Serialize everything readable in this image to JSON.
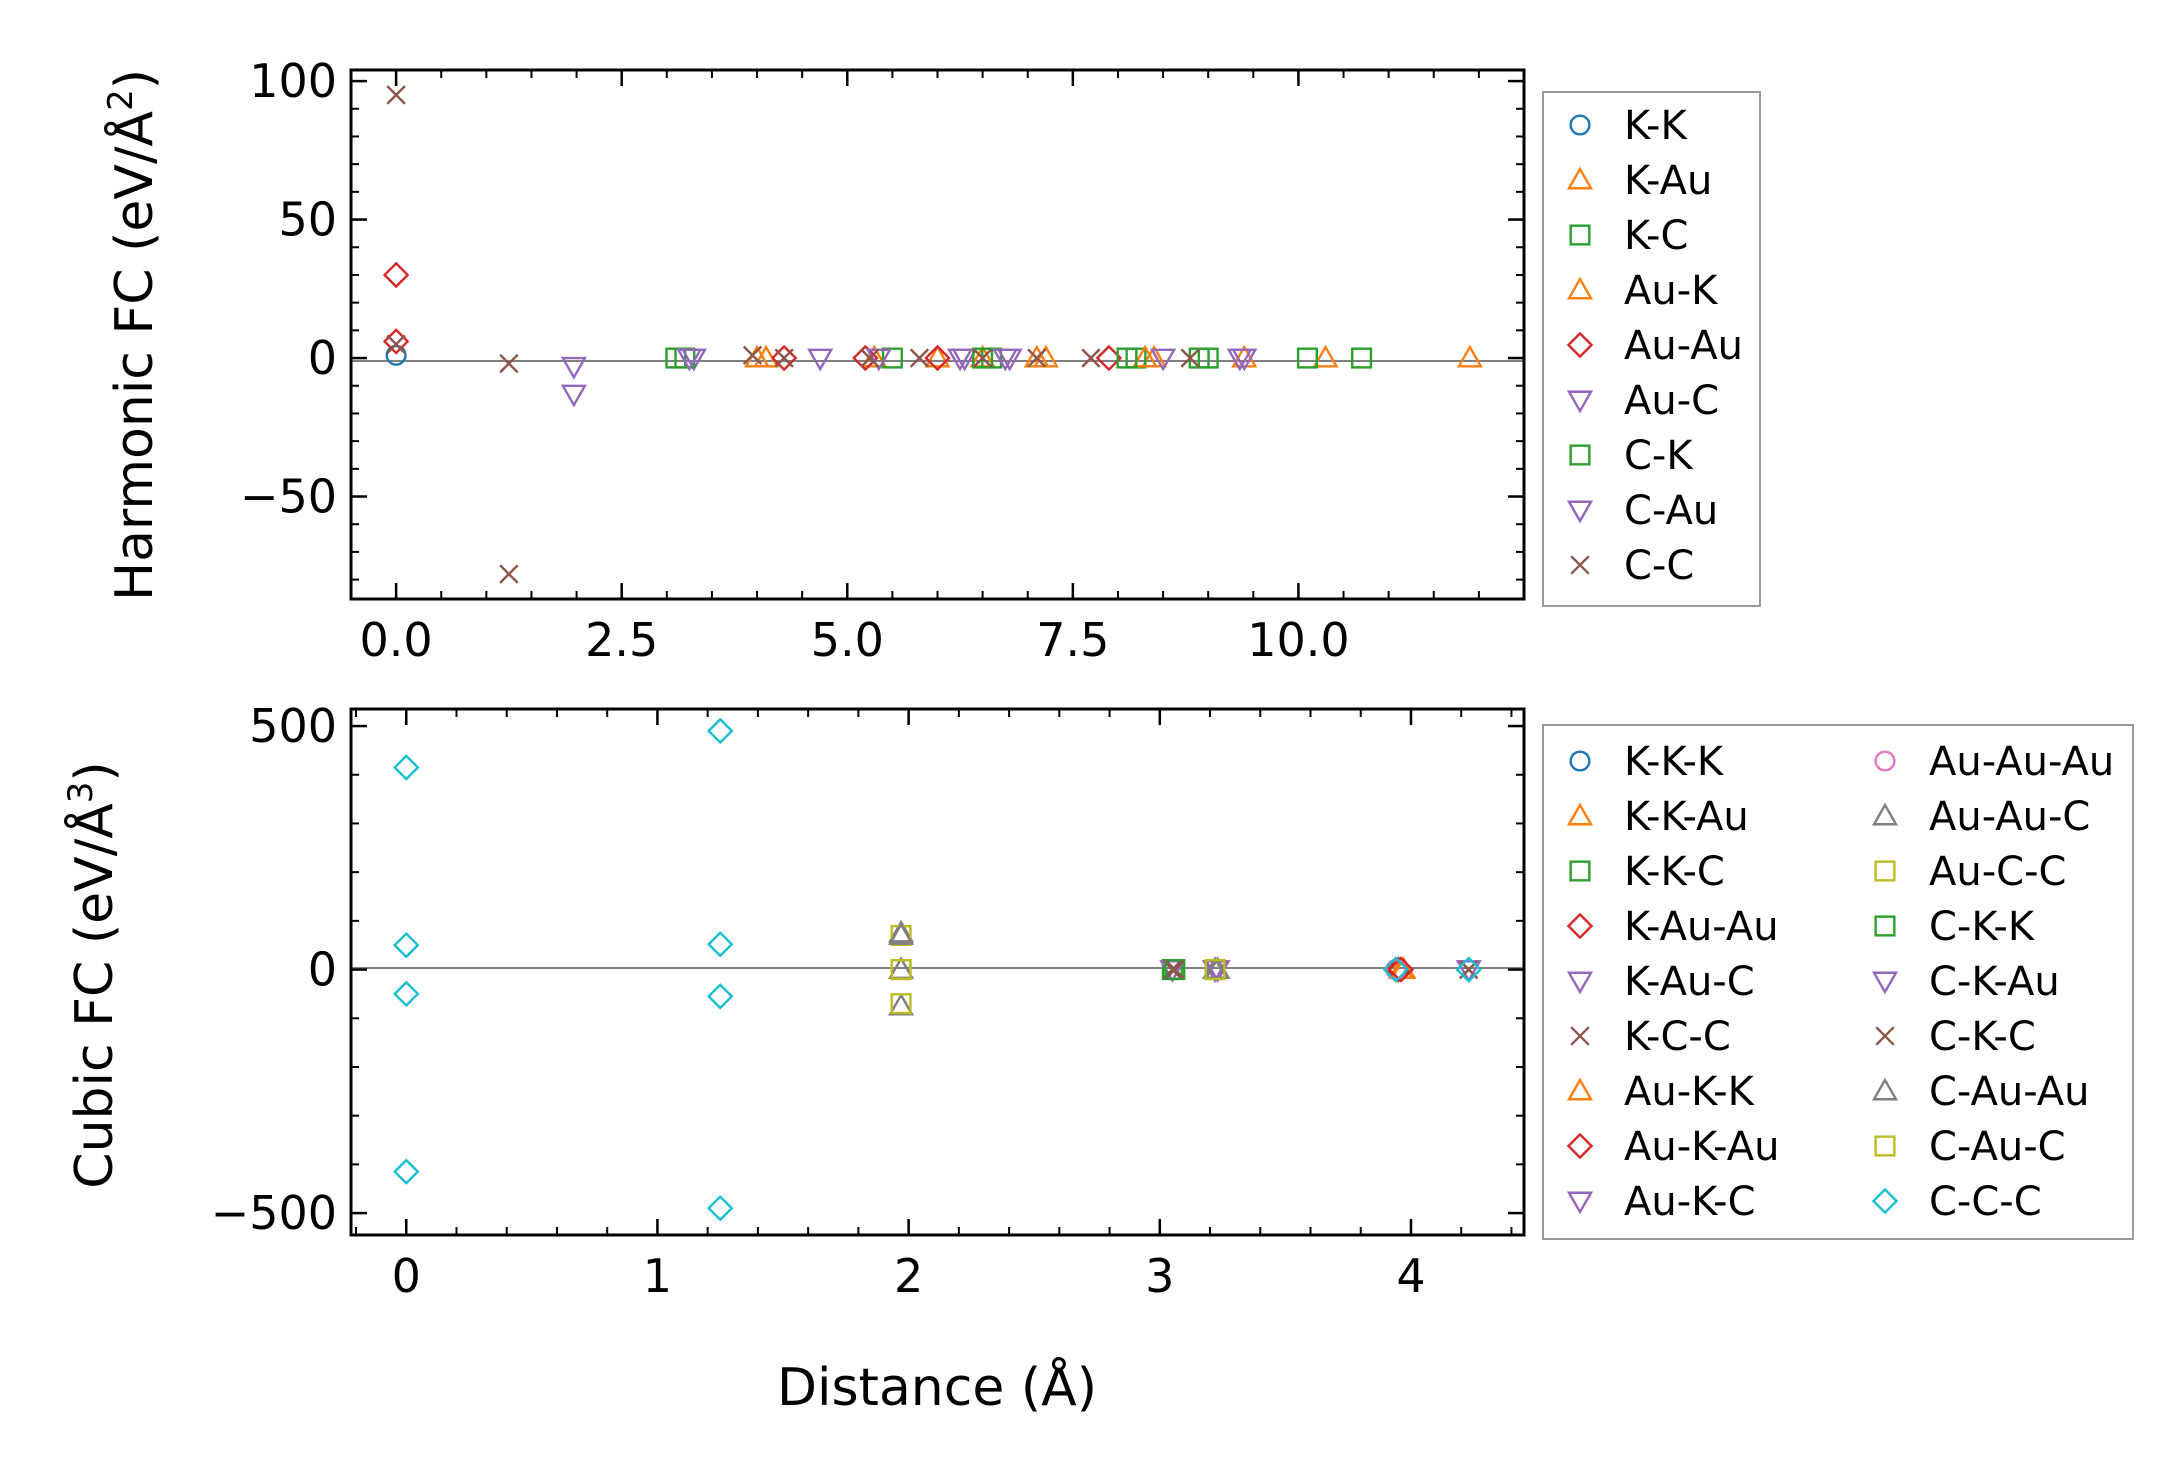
{
  "chart_data": [
    {
      "id": "harmonic",
      "type": "scatter",
      "ylabel": "Harmonic FC (eV/Å²)",
      "ylabel_main": "Harmonic FC (eV/Å",
      "ylabel_sup": "2",
      "ylabel_end": ")",
      "xlabel": "",
      "xlim": [
        -0.5,
        12.5
      ],
      "ylim": [
        -87,
        104
      ],
      "xticks": [
        0.0,
        2.5,
        5.0,
        7.5,
        10.0
      ],
      "xtick_labels": [
        "0.0",
        "2.5",
        "5.0",
        "7.5",
        "10.0"
      ],
      "yticks": [
        100,
        50,
        0,
        -50
      ],
      "ytick_labels": [
        "100",
        "50",
        "0",
        "−50"
      ],
      "legend_position": "outside-right",
      "series": [
        {
          "name": "K-K",
          "marker": "circle",
          "color": "#1f77b4",
          "points": [
            [
              0.0,
              1.0
            ]
          ]
        },
        {
          "name": "K-Au",
          "marker": "triangle-up",
          "color": "#ff7f0e",
          "points": [
            [
              4.0,
              0.0
            ],
            [
              5.3,
              0.0
            ],
            [
              6.5,
              0.0
            ],
            [
              7.2,
              0.0
            ],
            [
              8.4,
              0.0
            ],
            [
              9.4,
              0.0
            ],
            [
              10.3,
              0.0
            ],
            [
              11.9,
              0.0
            ]
          ]
        },
        {
          "name": "K-C",
          "marker": "square",
          "color": "#2ca02c",
          "points": [
            [
              3.1,
              0.0
            ],
            [
              5.5,
              0.0
            ],
            [
              6.6,
              0.0
            ],
            [
              8.2,
              0.0
            ],
            [
              9.0,
              0.0
            ],
            [
              10.1,
              0.0
            ],
            [
              10.7,
              0.0
            ]
          ]
        },
        {
          "name": "Au-K",
          "marker": "triangle-up",
          "color": "#ff7f0e",
          "points": [
            [
              4.1,
              0.0
            ],
            [
              6.0,
              0.0
            ],
            [
              7.1,
              0.0
            ],
            [
              8.3,
              0.0
            ]
          ]
        },
        {
          "name": "Au-Au",
          "marker": "diamond",
          "color": "#d62728",
          "points": [
            [
              0.0,
              30.0
            ],
            [
              0.0,
              6.0
            ],
            [
              4.3,
              0.0
            ],
            [
              5.2,
              0.0
            ],
            [
              6.0,
              0.0
            ],
            [
              7.9,
              0.0
            ]
          ]
        },
        {
          "name": "Au-C",
          "marker": "triangle-down",
          "color": "#9467bd",
          "points": [
            [
              1.97,
              -3.0
            ],
            [
              1.97,
              -13.0
            ],
            [
              3.3,
              0.0
            ],
            [
              4.7,
              0.0
            ],
            [
              5.35,
              0.0
            ],
            [
              6.3,
              0.0
            ],
            [
              6.8,
              0.0
            ],
            [
              8.5,
              0.0
            ],
            [
              9.4,
              0.0
            ]
          ]
        },
        {
          "name": "C-K",
          "marker": "square",
          "color": "#2ca02c",
          "points": [
            [
              3.2,
              0.0
            ],
            [
              6.5,
              0.0
            ],
            [
              8.1,
              0.0
            ],
            [
              8.9,
              0.0
            ]
          ]
        },
        {
          "name": "C-Au",
          "marker": "triangle-down",
          "color": "#9467bd",
          "points": [
            [
              3.25,
              0.0
            ],
            [
              6.25,
              0.0
            ],
            [
              6.75,
              0.0
            ],
            [
              9.35,
              0.0
            ]
          ]
        },
        {
          "name": "C-C",
          "marker": "x",
          "color": "#8c564b",
          "points": [
            [
              0.0,
              95.0
            ],
            [
              0.0,
              5.0
            ],
            [
              1.25,
              -2.0
            ],
            [
              1.25,
              -78.0
            ],
            [
              3.95,
              1.0
            ],
            [
              4.3,
              0.0
            ],
            [
              5.25,
              0.0
            ],
            [
              5.8,
              0.0
            ],
            [
              6.5,
              0.0
            ],
            [
              7.1,
              0.0
            ],
            [
              7.7,
              0.0
            ],
            [
              8.8,
              0.0
            ]
          ]
        }
      ]
    },
    {
      "id": "cubic",
      "type": "scatter",
      "ylabel": "Cubic FC (eV/Å³)",
      "ylabel_main": "Cubic FC (eV/Å",
      "ylabel_sup": "3",
      "ylabel_end": ")",
      "xlabel": "Distance (Å)",
      "xlim": [
        -0.22,
        4.45
      ],
      "ylim": [
        -545,
        535
      ],
      "xticks": [
        0,
        1,
        2,
        3,
        4
      ],
      "xtick_labels": [
        "0",
        "1",
        "2",
        "3",
        "4"
      ],
      "yticks": [
        500,
        0,
        -500
      ],
      "ytick_labels": [
        "500",
        "0",
        "−500"
      ],
      "legend_position": "outside-right",
      "series": [
        {
          "name": "K-K-K",
          "marker": "circle",
          "color": "#1f77b4",
          "points": [
            [
              3.94,
              0.0
            ]
          ]
        },
        {
          "name": "K-K-Au",
          "marker": "triangle-up",
          "color": "#ff7f0e",
          "points": [
            [
              3.96,
              0.0
            ]
          ]
        },
        {
          "name": "K-K-C",
          "marker": "square",
          "color": "#2ca02c",
          "points": [
            [
              3.05,
              0.0
            ]
          ]
        },
        {
          "name": "K-Au-Au",
          "marker": "diamond",
          "color": "#d62728",
          "points": [
            [
              3.95,
              0.0
            ]
          ]
        },
        {
          "name": "K-Au-C",
          "marker": "triangle-down",
          "color": "#9467bd",
          "points": [
            [
              3.05,
              0.0
            ],
            [
              3.22,
              0.0
            ]
          ]
        },
        {
          "name": "K-C-C",
          "marker": "x",
          "color": "#8c564b",
          "points": [
            [
              3.05,
              0.0
            ],
            [
              4.23,
              0.0
            ]
          ]
        },
        {
          "name": "Au-K-K",
          "marker": "triangle-up",
          "color": "#ff7f0e",
          "points": [
            [
              3.97,
              0.0
            ]
          ]
        },
        {
          "name": "Au-K-Au",
          "marker": "diamond",
          "color": "#d62728",
          "points": [
            [
              3.96,
              0.0
            ]
          ]
        },
        {
          "name": "Au-K-C",
          "marker": "triangle-down",
          "color": "#9467bd",
          "points": [
            [
              3.22,
              0.0
            ],
            [
              4.23,
              0.0
            ]
          ]
        },
        {
          "name": "Au-Au-Au",
          "marker": "circle",
          "color": "#e377c2",
          "points": [
            [
              3.94,
              0.0
            ]
          ]
        },
        {
          "name": "Au-Au-C",
          "marker": "triangle-up",
          "color": "#7f7f7f",
          "points": [
            [
              1.97,
              75.0
            ],
            [
              1.97,
              0.0
            ],
            [
              1.97,
              -75.0
            ],
            [
              3.22,
              0.0
            ]
          ]
        },
        {
          "name": "Au-C-C",
          "marker": "square",
          "color": "#bcbd22",
          "points": [
            [
              1.97,
              70.0
            ],
            [
              1.97,
              0.0
            ],
            [
              1.97,
              -70.0
            ],
            [
              3.22,
              0.0
            ]
          ]
        },
        {
          "name": "C-K-K",
          "marker": "square",
          "color": "#2ca02c",
          "points": [
            [
              3.06,
              0.0
            ]
          ]
        },
        {
          "name": "C-K-Au",
          "marker": "triangle-down",
          "color": "#9467bd",
          "points": [
            [
              3.23,
              0.0
            ]
          ]
        },
        {
          "name": "C-K-C",
          "marker": "x",
          "color": "#8c564b",
          "points": [
            [
              3.06,
              0.0
            ],
            [
              4.23,
              0.0
            ]
          ]
        },
        {
          "name": "C-Au-Au",
          "marker": "triangle-up",
          "color": "#7f7f7f",
          "points": [
            [
              1.97,
              70.0
            ],
            [
              3.23,
              0.0
            ]
          ]
        },
        {
          "name": "C-Au-C",
          "marker": "square",
          "color": "#bcbd22",
          "points": [
            [
              1.97,
              0.0
            ],
            [
              3.22,
              0.0
            ]
          ]
        },
        {
          "name": "C-C-C",
          "marker": "diamond",
          "color": "#17becf",
          "points": [
            [
              0.0,
              415.0
            ],
            [
              0.0,
              50.0
            ],
            [
              0.0,
              -50.0
            ],
            [
              0.0,
              -415.0
            ],
            [
              1.25,
              490.0
            ],
            [
              1.25,
              52.0
            ],
            [
              1.25,
              -55.0
            ],
            [
              1.25,
              -490.0
            ],
            [
              3.94,
              0.0
            ],
            [
              4.23,
              0.0
            ]
          ]
        }
      ]
    }
  ]
}
